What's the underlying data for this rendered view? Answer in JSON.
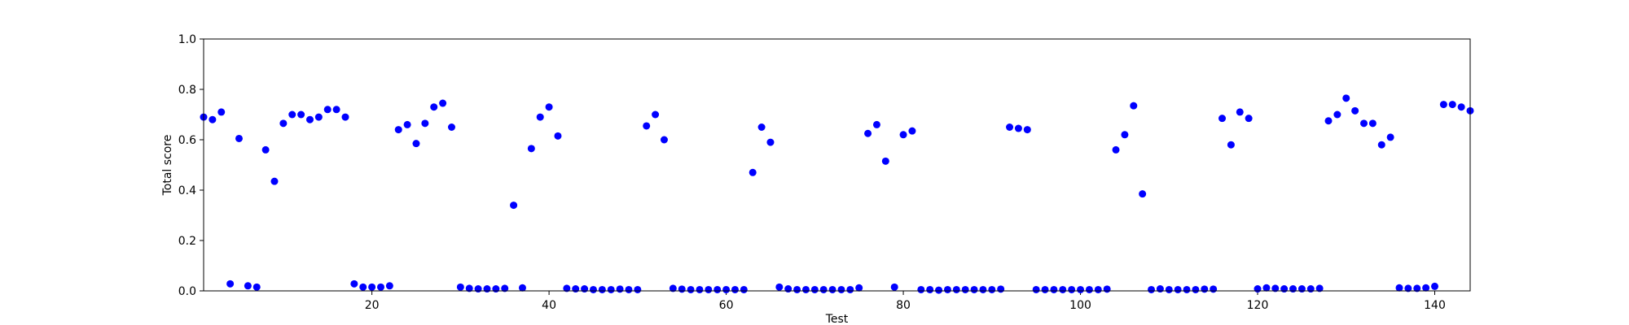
{
  "chart_data": {
    "type": "scatter",
    "title": "",
    "xlabel": "Test",
    "ylabel": "Total score",
    "xlim": [
      1,
      144
    ],
    "ylim": [
      0,
      1.0
    ],
    "x_ticks": [
      20,
      40,
      60,
      80,
      100,
      120,
      140
    ],
    "x_tick_labels": [
      "20",
      "40",
      "60",
      "80",
      "100",
      "120",
      "140"
    ],
    "y_ticks": [
      0,
      0.2,
      0.4,
      0.6,
      0.8,
      1.0
    ],
    "y_tick_labels": [
      "0.0",
      "0.2",
      "0.4",
      "0.6",
      "0.8",
      "1.0"
    ],
    "grid": false,
    "marker_color": "#0000ff",
    "series": [
      {
        "x": [
          1,
          2,
          3,
          4,
          5,
          6,
          7,
          8,
          9,
          10,
          11,
          12,
          13,
          14,
          15,
          16,
          17,
          18,
          19,
          20,
          21,
          22,
          23,
          24,
          25,
          26,
          27,
          28,
          29,
          30,
          31,
          32,
          33,
          34,
          35,
          36,
          37,
          38,
          39,
          40,
          41,
          42,
          43,
          44,
          45,
          46,
          47,
          48,
          49,
          50,
          51,
          52,
          53,
          54,
          55,
          56,
          57,
          58,
          59,
          60,
          61,
          62,
          63,
          64,
          65,
          66,
          67,
          68,
          69,
          70,
          71,
          72,
          73,
          74,
          75,
          76,
          77,
          78,
          79,
          80,
          81,
          82,
          83,
          84,
          85,
          86,
          87,
          88,
          89,
          90,
          91,
          92,
          93,
          94,
          95,
          96,
          97,
          98,
          99,
          100,
          101,
          102,
          103,
          104,
          105,
          106,
          107,
          108,
          109,
          110,
          111,
          112,
          113,
          114,
          115,
          116,
          117,
          118,
          119,
          120,
          121,
          122,
          123,
          124,
          125,
          126,
          127,
          128,
          129,
          130,
          131,
          132,
          133,
          134,
          135,
          136,
          137,
          138,
          139,
          140,
          141,
          142,
          143,
          144
        ],
        "y": [
          0.69,
          0.68,
          0.71,
          0.028,
          0.605,
          0.02,
          0.015,
          0.56,
          0.435,
          0.665,
          0.7,
          0.7,
          0.68,
          0.69,
          0.72,
          0.72,
          0.69,
          0.028,
          0.015,
          0.015,
          0.015,
          0.02,
          0.64,
          0.66,
          0.585,
          0.665,
          0.73,
          0.745,
          0.65,
          0.015,
          0.01,
          0.008,
          0.008,
          0.008,
          0.01,
          0.34,
          0.012,
          0.565,
          0.69,
          0.73,
          0.615,
          0.01,
          0.008,
          0.008,
          0.005,
          0.005,
          0.005,
          0.007,
          0.005,
          0.005,
          0.655,
          0.7,
          0.6,
          0.01,
          0.007,
          0.005,
          0.005,
          0.005,
          0.005,
          0.005,
          0.005,
          0.005,
          0.47,
          0.65,
          0.59,
          0.015,
          0.008,
          0.005,
          0.005,
          0.005,
          0.005,
          0.005,
          0.005,
          0.005,
          0.012,
          0.625,
          0.66,
          0.515,
          0.015,
          0.62,
          0.635,
          0.005,
          0.005,
          0.003,
          0.005,
          0.005,
          0.005,
          0.005,
          0.005,
          0.005,
          0.007,
          0.65,
          0.645,
          0.64,
          0.005,
          0.005,
          0.005,
          0.005,
          0.005,
          0.005,
          0.005,
          0.005,
          0.007,
          0.56,
          0.62,
          0.735,
          0.385,
          0.005,
          0.008,
          0.005,
          0.005,
          0.005,
          0.005,
          0.007,
          0.007,
          0.685,
          0.58,
          0.71,
          0.685,
          0.008,
          0.012,
          0.01,
          0.008,
          0.008,
          0.008,
          0.008,
          0.01,
          0.675,
          0.7,
          0.765,
          0.715,
          0.665,
          0.665,
          0.58,
          0.61,
          0.012,
          0.01,
          0.01,
          0.012,
          0.018,
          0.74,
          0.74,
          0.73,
          0.715
        ]
      }
    ]
  }
}
